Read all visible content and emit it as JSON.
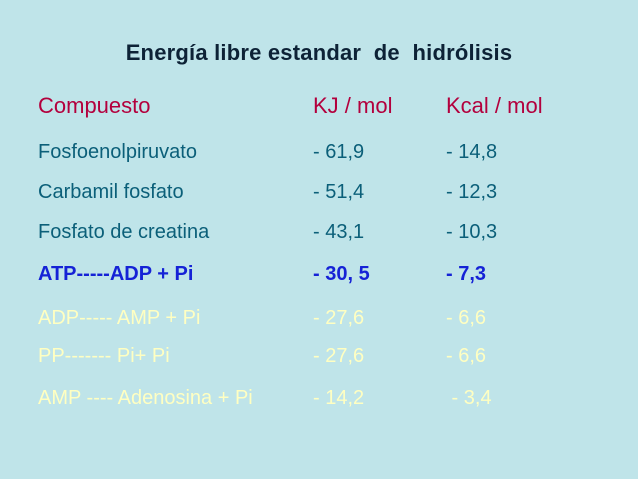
{
  "title": "Energía libre estandar  de  hidrólisis",
  "table": {
    "headers": [
      "Compuesto",
      "KJ / mol",
      "Kcal / mol"
    ],
    "rows": [
      {
        "compuesto": "Fosfoenolpiruvato",
        "kj": "- 61,9",
        "kcal": "- 14,8"
      },
      {
        "compuesto": "Carbamil fosfato",
        "kj": "- 51,4",
        "kcal": "- 12,3"
      },
      {
        "compuesto": "Fosfato de creatina",
        "kj": "- 43,1",
        "kcal": "- 10,3"
      },
      {
        "compuesto": "ATP-----ADP + Pi",
        "kj": "- 30, 5",
        "kcal": "- 7,3"
      },
      {
        "compuesto": "ADP----- AMP + Pi",
        "kj": "- 27,6",
        "kcal": "- 6,6"
      },
      {
        "compuesto": "PP------- Pi+ Pi",
        "kj": "- 27,6",
        "kcal": "- 6,6"
      },
      {
        "compuesto": "AMP ---- Adenosina + Pi",
        "kj": "- 14,2",
        "kcal": " - 3,4"
      }
    ]
  },
  "colors": {
    "background": "#bfe4e9",
    "title": "#0d2236",
    "header": "#b3003d",
    "body": "#0b5f79",
    "highlight": "#1522d6",
    "pale": "#ffffc2"
  }
}
